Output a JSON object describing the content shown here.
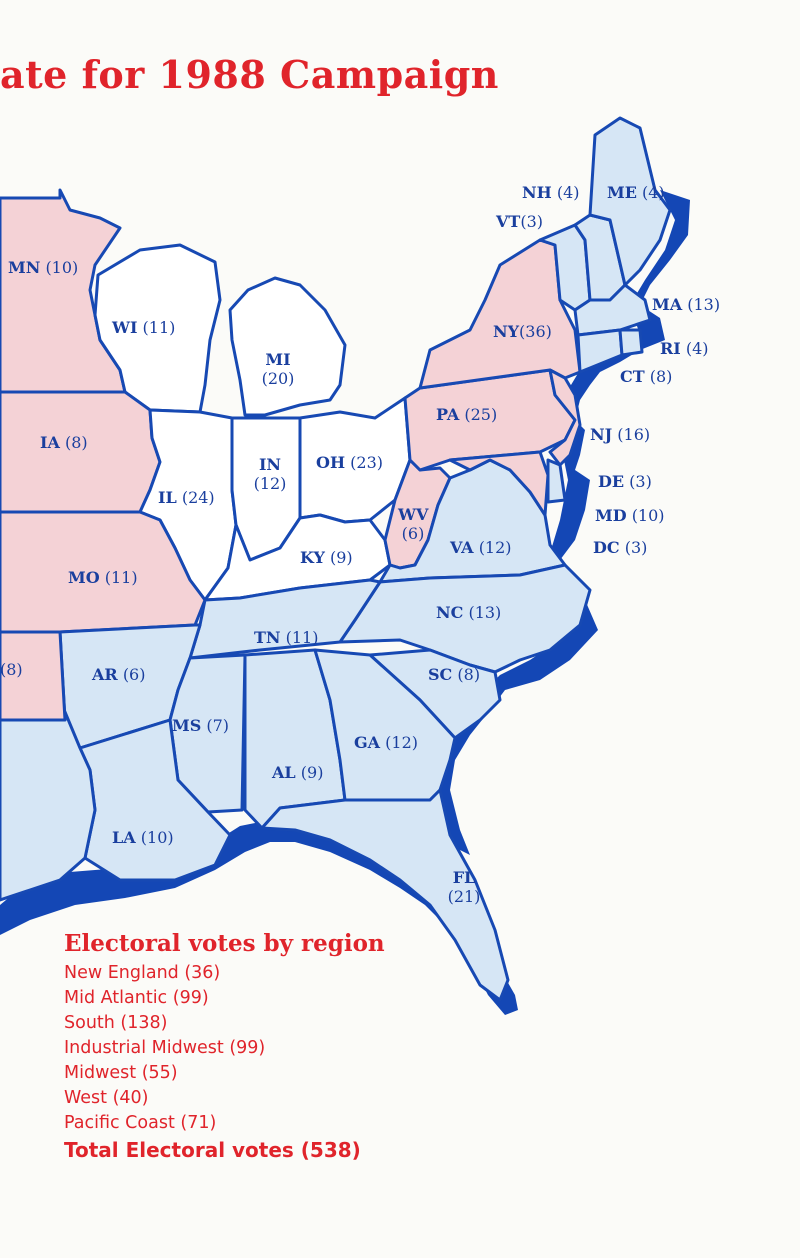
{
  "title": "ate for 1988 Campaign",
  "colors": {
    "red_states": "#f4d2d6",
    "blue_states": "#d6e6f5",
    "white_states": "#ffffff",
    "coast": "#1447b5",
    "text_red": "#e0242b",
    "text_blue": "#1a3f9e"
  },
  "states": [
    {
      "abbr": "MN",
      "votes": "(10)",
      "fill": "red"
    },
    {
      "abbr": "WI",
      "votes": "(11)",
      "fill": "white"
    },
    {
      "abbr": "MI",
      "votes": "(20)",
      "fill": "white"
    },
    {
      "abbr": "IA",
      "votes": "(8)",
      "fill": "red"
    },
    {
      "abbr": "IL",
      "votes": "(24)",
      "fill": "white"
    },
    {
      "abbr": "IN",
      "votes": "(12)",
      "fill": "white"
    },
    {
      "abbr": "OH",
      "votes": "(23)",
      "fill": "white"
    },
    {
      "abbr": "MO",
      "votes": "(11)",
      "fill": "red"
    },
    {
      "abbr": "KY",
      "votes": "(9)",
      "fill": "white"
    },
    {
      "abbr": "WV",
      "votes": "(6)",
      "fill": "red"
    },
    {
      "abbr": "VA",
      "votes": "(12)",
      "fill": "blue"
    },
    {
      "abbr": "PA",
      "votes": "(25)",
      "fill": "red"
    },
    {
      "abbr": "NY",
      "votes": "(36)",
      "fill": "red"
    },
    {
      "abbr": "NJ",
      "votes": "(16)",
      "fill": "red"
    },
    {
      "abbr": "DE",
      "votes": "(3)",
      "fill": "blue"
    },
    {
      "abbr": "MD",
      "votes": "(10)",
      "fill": "red"
    },
    {
      "abbr": "DC",
      "votes": "(3)",
      "fill": "blue"
    },
    {
      "abbr": "NH",
      "votes": "(4)",
      "fill": "blue"
    },
    {
      "abbr": "VT",
      "votes": "(3)",
      "fill": "blue"
    },
    {
      "abbr": "ME",
      "votes": "(4)",
      "fill": "blue"
    },
    {
      "abbr": "MA",
      "votes": "(13)",
      "fill": "blue"
    },
    {
      "abbr": "RI",
      "votes": "(4)",
      "fill": "blue"
    },
    {
      "abbr": "CT",
      "votes": "(8)",
      "fill": "blue"
    },
    {
      "abbr": "NC",
      "votes": "(13)",
      "fill": "blue"
    },
    {
      "abbr": "TN",
      "votes": "(11)",
      "fill": "blue"
    },
    {
      "abbr": "AR",
      "votes": "(6)",
      "fill": "blue"
    },
    {
      "abbr": "SC",
      "votes": "(8)",
      "fill": "blue"
    },
    {
      "abbr": "MS",
      "votes": "(7)",
      "fill": "blue"
    },
    {
      "abbr": "GA",
      "votes": "(12)",
      "fill": "blue"
    },
    {
      "abbr": "AL",
      "votes": "(9)",
      "fill": "blue"
    },
    {
      "abbr": "LA",
      "votes": "(10)",
      "fill": "blue"
    },
    {
      "abbr": "FL",
      "votes": "(21)",
      "fill": "blue"
    },
    {
      "abbr": "",
      "votes": "(8)",
      "fill": "red"
    }
  ],
  "legend": {
    "title": "Electoral votes by region",
    "items": [
      "New England (36)",
      "Mid Atlantic (99)",
      "South (138)",
      "Industrial Midwest (99)",
      "Midwest (55)",
      "West (40)",
      "Pacific Coast (71)"
    ],
    "total": "Total Electoral votes (538)"
  }
}
